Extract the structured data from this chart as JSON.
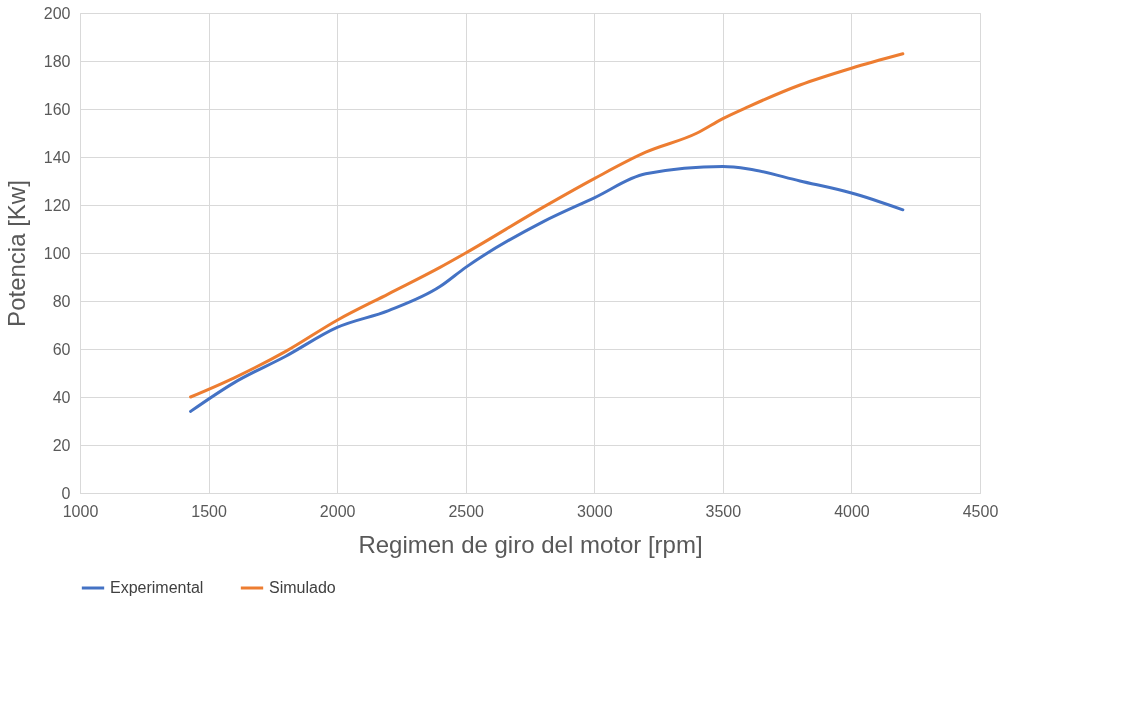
{
  "chart_data": {
    "type": "line",
    "xlabel": "Regimen de giro del motor [rpm]",
    "ylabel": "Potencia [Kw]",
    "xlim": [
      1000,
      4500
    ],
    "xticks": [
      1000,
      1500,
      2000,
      2500,
      3000,
      3500,
      4000,
      4500
    ],
    "ylim": [
      0,
      200
    ],
    "yticks": [
      0,
      20,
      40,
      60,
      80,
      100,
      120,
      140,
      160,
      180,
      200
    ],
    "grid": true,
    "legend": "bottom",
    "marker": "none",
    "line_style": "solid",
    "series": [
      {
        "name": "Experimental",
        "color": "#4472c4",
        "x": [
          1430,
          1600,
          1800,
          2000,
          2200,
          2400,
          2500,
          2800,
          3000,
          3200,
          3500,
          3600,
          3800,
          4000,
          4200
        ],
        "values": [
          34,
          46,
          57,
          69,
          76,
          86,
          94,
          113,
          123,
          133,
          136,
          135,
          130,
          125,
          118
        ]
      },
      {
        "name": "Simulado",
        "color": "#ed7d31",
        "x": [
          1430,
          1600,
          1800,
          2000,
          2200,
          2400,
          2500,
          2800,
          3000,
          3200,
          3400,
          3500,
          3600,
          3800,
          4000,
          4200
        ],
        "values": [
          40,
          48,
          59,
          72,
          83,
          94,
          100,
          119,
          131,
          142,
          150,
          156,
          161,
          170,
          177,
          183
        ]
      }
    ]
  }
}
